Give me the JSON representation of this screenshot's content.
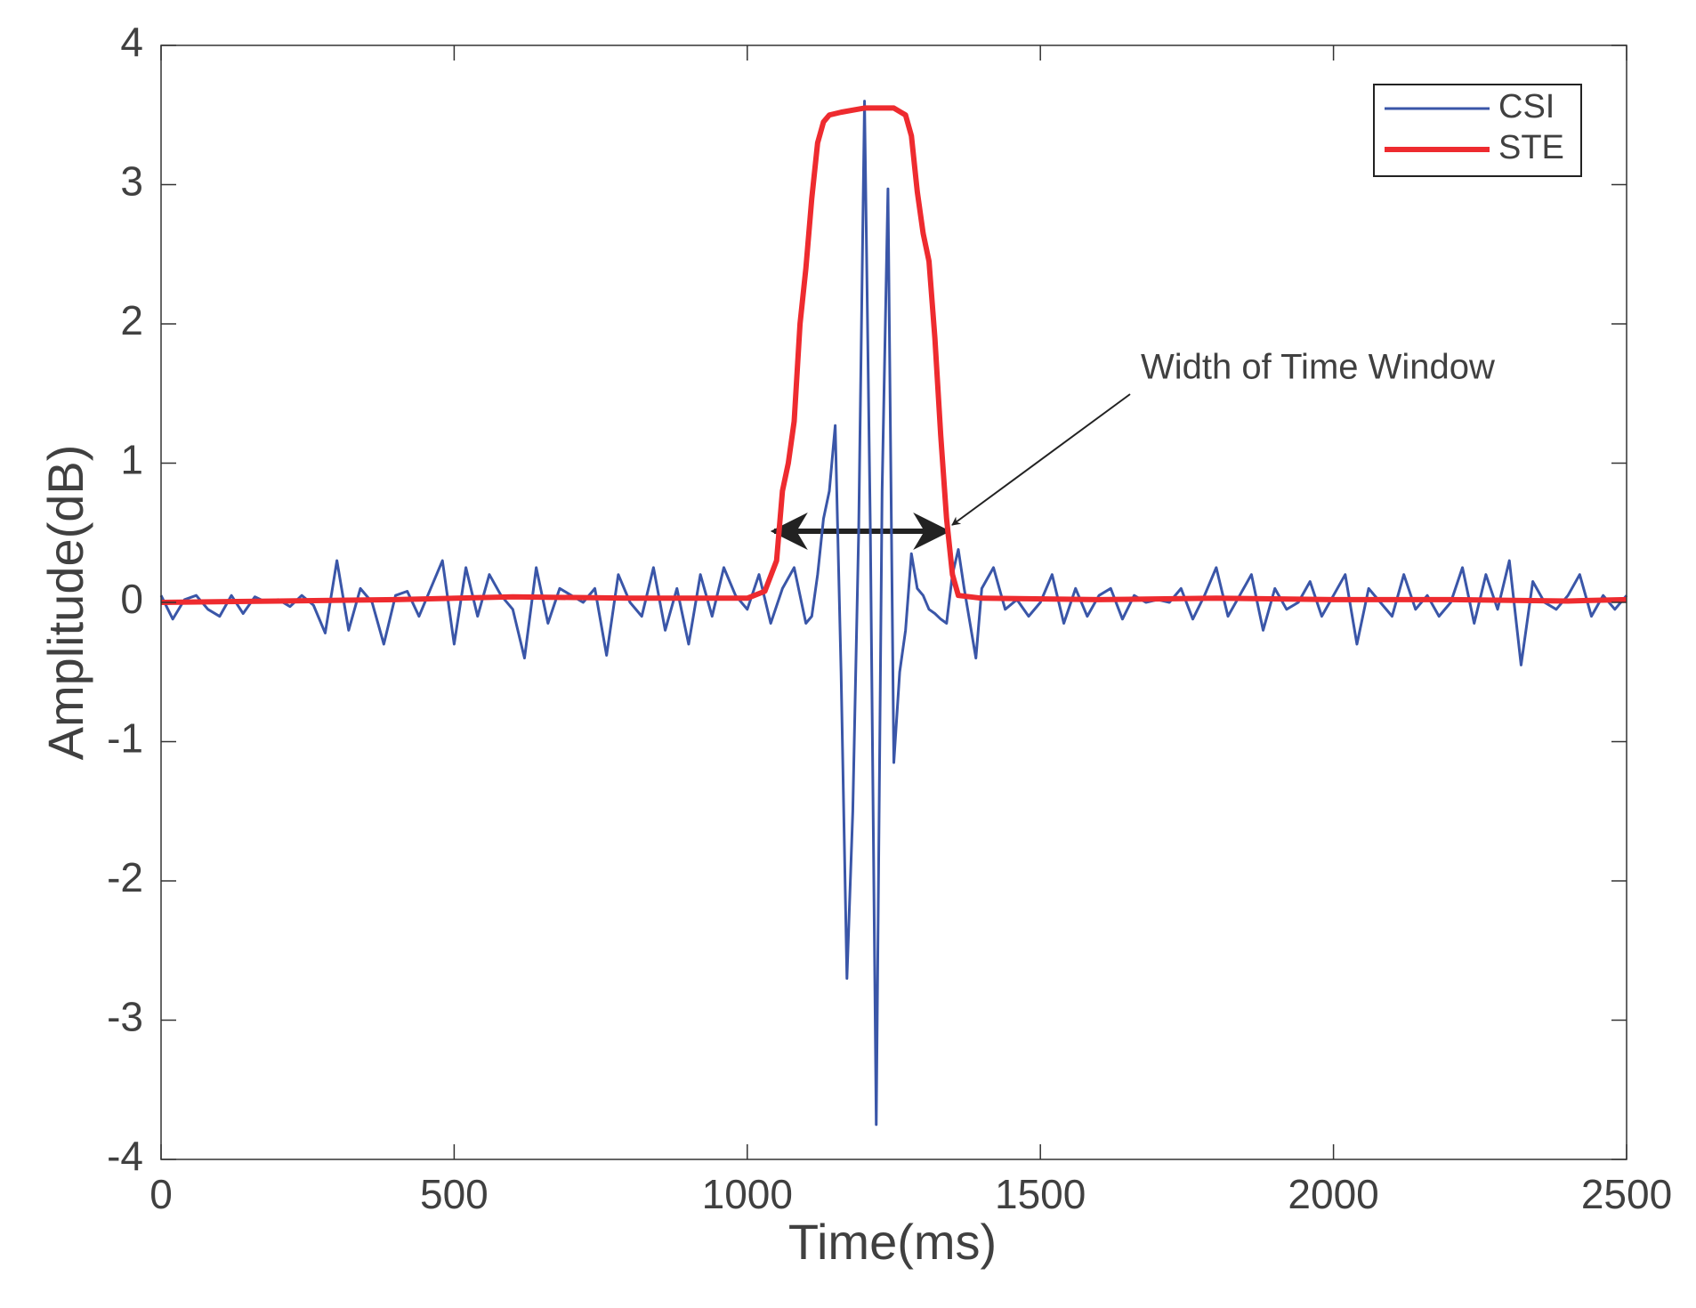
{
  "chart_data": {
    "type": "line",
    "xlabel": "Time(ms)",
    "ylabel": "Amplitude(dB)",
    "xlim": [
      0,
      2500
    ],
    "ylim": [
      -4,
      4
    ],
    "xticks": [
      0,
      500,
      1000,
      1500,
      2000,
      2500
    ],
    "yticks": [
      -4,
      -3,
      -2,
      -1,
      0,
      1,
      2,
      3,
      4
    ],
    "legend": "upper right",
    "annotation": "Width of Time Window",
    "series": [
      {
        "name": "CSI",
        "color": "#3a56a8",
        "x": [
          0,
          20,
          40,
          60,
          80,
          100,
          120,
          140,
          160,
          180,
          200,
          220,
          240,
          260,
          280,
          300,
          320,
          340,
          360,
          380,
          400,
          420,
          440,
          460,
          480,
          500,
          520,
          540,
          560,
          580,
          600,
          620,
          640,
          660,
          680,
          700,
          720,
          740,
          760,
          780,
          800,
          820,
          840,
          860,
          880,
          900,
          920,
          940,
          960,
          980,
          1000,
          1020,
          1040,
          1060,
          1080,
          1100,
          1110,
          1120,
          1130,
          1140,
          1150,
          1160,
          1170,
          1180,
          1190,
          1200,
          1210,
          1220,
          1230,
          1240,
          1250,
          1260,
          1270,
          1280,
          1290,
          1300,
          1310,
          1320,
          1330,
          1340,
          1350,
          1360,
          1370,
          1380,
          1390,
          1400,
          1420,
          1440,
          1460,
          1480,
          1500,
          1520,
          1540,
          1560,
          1580,
          1600,
          1620,
          1640,
          1660,
          1680,
          1700,
          1720,
          1740,
          1760,
          1780,
          1800,
          1820,
          1840,
          1860,
          1880,
          1900,
          1920,
          1940,
          1960,
          1980,
          2000,
          2020,
          2040,
          2060,
          2080,
          2100,
          2120,
          2140,
          2160,
          2180,
          2200,
          2220,
          2240,
          2260,
          2280,
          2300,
          2320,
          2340,
          2360,
          2380,
          2400,
          2420,
          2440,
          2460,
          2480,
          2500
        ],
        "values": [
          0.05,
          -0.12,
          0.02,
          0.05,
          -0.05,
          -0.1,
          0.05,
          -0.08,
          0.04,
          0.0,
          0.02,
          -0.03,
          0.05,
          -0.02,
          -0.22,
          0.3,
          -0.2,
          0.1,
          0.0,
          -0.3,
          0.05,
          0.08,
          -0.1,
          0.1,
          0.3,
          -0.3,
          0.25,
          -0.1,
          0.2,
          0.05,
          -0.05,
          -0.4,
          0.25,
          -0.15,
          0.1,
          0.05,
          0.0,
          0.1,
          -0.38,
          0.2,
          0.0,
          -0.1,
          0.25,
          -0.2,
          0.1,
          -0.3,
          0.2,
          -0.1,
          0.25,
          0.05,
          -0.05,
          0.2,
          -0.15,
          0.1,
          0.25,
          -0.15,
          -0.1,
          0.2,
          0.6,
          0.8,
          1.27,
          -0.5,
          -2.7,
          -1.5,
          0.5,
          3.6,
          0.5,
          -3.75,
          0.8,
          2.97,
          -1.15,
          -0.5,
          -0.2,
          0.35,
          0.1,
          0.05,
          -0.05,
          -0.08,
          -0.12,
          -0.15,
          0.2,
          0.38,
          0.1,
          -0.15,
          -0.4,
          0.1,
          0.25,
          -0.05,
          0.02,
          -0.1,
          0.0,
          0.2,
          -0.15,
          0.1,
          -0.1,
          0.05,
          0.1,
          -0.12,
          0.05,
          0.0,
          0.02,
          0.0,
          0.1,
          -0.12,
          0.05,
          0.25,
          -0.1,
          0.05,
          0.2,
          -0.2,
          0.1,
          -0.05,
          0.0,
          0.15,
          -0.1,
          0.05,
          0.2,
          -0.3,
          0.1,
          0.0,
          -0.1,
          0.2,
          -0.05,
          0.05,
          -0.1,
          0.0,
          0.25,
          -0.15,
          0.2,
          -0.05,
          0.3,
          -0.45,
          0.15,
          0.0,
          -0.05,
          0.05,
          0.2,
          -0.1,
          0.05,
          -0.05,
          0.05
        ]
      },
      {
        "name": "STE",
        "color": "#ee2b2f",
        "x": [
          0,
          200,
          400,
          600,
          800,
          1000,
          1030,
          1050,
          1060,
          1070,
          1080,
          1090,
          1100,
          1110,
          1120,
          1130,
          1140,
          1160,
          1200,
          1250,
          1270,
          1280,
          1290,
          1300,
          1310,
          1320,
          1330,
          1340,
          1350,
          1360,
          1400,
          1600,
          1800,
          2000,
          2200,
          2400,
          2500
        ],
        "values": [
          0.0,
          0.01,
          0.02,
          0.04,
          0.03,
          0.03,
          0.08,
          0.3,
          0.8,
          1.0,
          1.3,
          2.0,
          2.4,
          2.9,
          3.3,
          3.45,
          3.5,
          3.52,
          3.55,
          3.55,
          3.5,
          3.35,
          2.95,
          2.65,
          2.45,
          1.9,
          1.2,
          0.6,
          0.2,
          0.05,
          0.03,
          0.02,
          0.03,
          0.02,
          0.02,
          0.01,
          0.02
        ]
      }
    ]
  }
}
